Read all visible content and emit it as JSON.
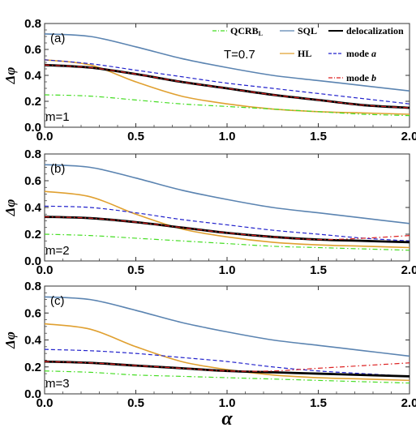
{
  "chart_data": [
    {
      "type": "line",
      "panel_label": "(a)",
      "m_label": "m=1",
      "annotation": "T=0.7",
      "ylabel": "Δφ",
      "xlabel": "",
      "xlim": [
        0,
        2
      ],
      "ylim": [
        0,
        0.8
      ],
      "xticks": [
        "0.0",
        "0.5",
        "1.0",
        "1.5",
        "2.0"
      ],
      "yticks": [
        "0.0",
        "0.2",
        "0.4",
        "0.6",
        "0.8"
      ],
      "legend": [
        {
          "label": "QCRB",
          "sub": "L",
          "color": "#44dd22",
          "style": "dashdot"
        },
        {
          "label": "SQL",
          "color": "#5b84b1",
          "style": "solid"
        },
        {
          "label": "delocalization",
          "color": "#000000",
          "style": "solid"
        },
        {
          "label": "HL",
          "color": "#e0a030",
          "style": "solid"
        },
        {
          "label": "mode ",
          "italic": "a",
          "color": "#2222cc",
          "style": "dashed"
        },
        {
          "label": "mode ",
          "italic": "b",
          "color": "#dd2222",
          "style": "dashdot"
        }
      ],
      "x": [
        0,
        0.25,
        0.5,
        0.75,
        1.0,
        1.25,
        1.5,
        1.75,
        2.0
      ],
      "series": [
        {
          "name": "SQL",
          "values": [
            0.72,
            0.7,
            0.62,
            0.53,
            0.46,
            0.4,
            0.36,
            0.32,
            0.28
          ]
        },
        {
          "name": "HL",
          "values": [
            0.52,
            0.48,
            0.35,
            0.24,
            0.18,
            0.14,
            0.12,
            0.11,
            0.1
          ]
        },
        {
          "name": "mode a",
          "values": [
            0.52,
            0.49,
            0.44,
            0.39,
            0.34,
            0.3,
            0.26,
            0.22,
            0.18
          ]
        },
        {
          "name": "delocalization",
          "values": [
            0.48,
            0.46,
            0.41,
            0.35,
            0.3,
            0.25,
            0.21,
            0.17,
            0.15
          ]
        },
        {
          "name": "mode b",
          "values": [
            0.48,
            0.46,
            0.41,
            0.35,
            0.3,
            0.25,
            0.21,
            0.17,
            0.15
          ]
        },
        {
          "name": "QCRB",
          "sub": "L",
          "values": [
            0.25,
            0.24,
            0.21,
            0.18,
            0.16,
            0.14,
            0.12,
            0.1,
            0.09
          ]
        }
      ]
    },
    {
      "type": "line",
      "panel_label": "(b)",
      "m_label": "m=2",
      "ylabel": "Δφ",
      "xlabel": "",
      "xlim": [
        0,
        2
      ],
      "ylim": [
        0,
        0.8
      ],
      "xticks": [
        "0.0",
        "0.5",
        "1.0",
        "1.5",
        "2.0"
      ],
      "yticks": [
        "0.0",
        "0.2",
        "0.4",
        "0.6",
        "0.8"
      ],
      "x": [
        0,
        0.25,
        0.5,
        0.75,
        1.0,
        1.25,
        1.5,
        1.75,
        2.0
      ],
      "series": [
        {
          "name": "SQL",
          "values": [
            0.72,
            0.7,
            0.62,
            0.53,
            0.46,
            0.4,
            0.36,
            0.32,
            0.28
          ]
        },
        {
          "name": "HL",
          "values": [
            0.52,
            0.48,
            0.35,
            0.24,
            0.18,
            0.14,
            0.12,
            0.11,
            0.1
          ]
        },
        {
          "name": "mode a",
          "values": [
            0.41,
            0.4,
            0.36,
            0.31,
            0.27,
            0.23,
            0.2,
            0.17,
            0.15
          ]
        },
        {
          "name": "delocalization",
          "values": [
            0.33,
            0.32,
            0.29,
            0.25,
            0.21,
            0.18,
            0.16,
            0.15,
            0.14
          ]
        },
        {
          "name": "mode b",
          "values": [
            0.33,
            0.32,
            0.29,
            0.25,
            0.21,
            0.18,
            0.16,
            0.17,
            0.19
          ]
        },
        {
          "name": "QCRB",
          "sub": "L",
          "values": [
            0.2,
            0.19,
            0.17,
            0.15,
            0.13,
            0.11,
            0.1,
            0.09,
            0.08
          ]
        }
      ]
    },
    {
      "type": "line",
      "panel_label": "(c)",
      "m_label": "m=3",
      "ylabel": "Δφ",
      "xlabel": "α",
      "xlim": [
        0,
        2
      ],
      "ylim": [
        0,
        0.8
      ],
      "xticks": [
        "0.0",
        "0.5",
        "1.0",
        "1.5",
        "2.0"
      ],
      "yticks": [
        "0.0",
        "0.2",
        "0.4",
        "0.6",
        "0.8"
      ],
      "x": [
        0,
        0.25,
        0.5,
        0.75,
        1.0,
        1.25,
        1.5,
        1.75,
        2.0
      ],
      "series": [
        {
          "name": "SQL",
          "values": [
            0.72,
            0.7,
            0.62,
            0.53,
            0.46,
            0.4,
            0.36,
            0.32,
            0.28
          ]
        },
        {
          "name": "HL",
          "values": [
            0.52,
            0.48,
            0.35,
            0.24,
            0.18,
            0.14,
            0.12,
            0.11,
            0.1
          ]
        },
        {
          "name": "mode a",
          "values": [
            0.33,
            0.32,
            0.3,
            0.27,
            0.24,
            0.2,
            0.17,
            0.15,
            0.13
          ]
        },
        {
          "name": "delocalization",
          "values": [
            0.24,
            0.23,
            0.21,
            0.19,
            0.17,
            0.16,
            0.15,
            0.14,
            0.13
          ]
        },
        {
          "name": "mode b",
          "values": [
            0.24,
            0.23,
            0.21,
            0.19,
            0.17,
            0.17,
            0.19,
            0.21,
            0.23
          ]
        },
        {
          "name": "QCRB",
          "sub": "L",
          "values": [
            0.17,
            0.16,
            0.14,
            0.13,
            0.12,
            0.11,
            0.1,
            0.09,
            0.08
          ]
        }
      ]
    }
  ],
  "colors": {
    "SQL": "#5b84b1",
    "HL": "#e0a030",
    "mode a": "#2222cc",
    "delocalization": "#000000",
    "mode b": "#dd2222",
    "QCRB": "#44dd22"
  }
}
